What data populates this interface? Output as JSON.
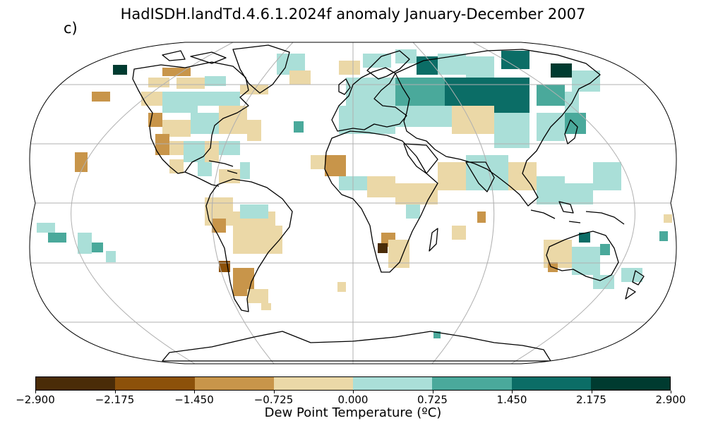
{
  "title": "HadISDH.landTd.4.6.1.2024f anomaly January-December 2007",
  "panel_label": "c)",
  "colorbar": {
    "label": "Dew Point Temperature (ºC)",
    "ticks": [
      "−2.900",
      "−2.175",
      "−1.450",
      "−0.725",
      "0.000",
      "0.725",
      "1.450",
      "2.175",
      "2.900"
    ],
    "colors": [
      "#4a2c08",
      "#8c510a",
      "#c8954a",
      "#ebd8a7",
      "#aadfd8",
      "#4aa99b",
      "#0b6d66",
      "#003b30"
    ]
  },
  "map": {
    "projection": "Robinson",
    "graticule": true
  }
}
